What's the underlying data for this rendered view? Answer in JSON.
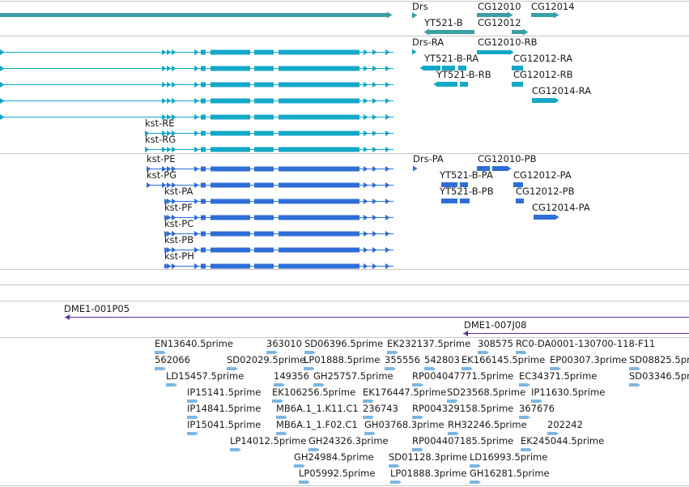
{
  "colors": {
    "gene": "#3aa0a4",
    "transcript_cyan": "#14a8c8",
    "transcript_blue": "#2f6ed6",
    "clone": "#5c2d91",
    "est": "#7eb6e0",
    "separator": "#c8c8c8",
    "text": "#1a1a1a"
  },
  "tracks": {
    "genes": {
      "labels": [
        "Drs",
        "CG12010",
        "CG12014",
        "YT521-B",
        "CG12012"
      ]
    },
    "transcripts_a": {
      "labels": [
        "Drs-RA",
        "CG12010-RB",
        "YT521-B-RA",
        "CG12012-RA",
        "YT521-B-RB",
        "CG12012-RB",
        "CG12014-RA",
        "kst-RE",
        "kst-RG"
      ]
    },
    "transcripts_b": {
      "labels": [
        "kst-PE",
        "Drs-PA",
        "CG12010-PB",
        "kst-PG",
        "YT521-B-PA",
        "CG12012-PA",
        "kst-PA",
        "YT521-B-PB",
        "CG12012-PB",
        "kst-PF",
        "CG12014-PA",
        "kst-PC",
        "kst-PB",
        "kst-PH"
      ]
    },
    "clones": {
      "labels": [
        "DME1-001P05",
        "DME1-007J08"
      ]
    },
    "ests": {
      "labels": [
        "EN13640.5prime",
        "363010",
        "SD06396.5prime",
        "EK232137.5prime",
        "308575",
        "RC0-DA0001-130700-118-F11",
        "562066",
        "SD02029.5prime",
        "LP01888.5prime",
        "355556",
        "542803",
        "EK166145.5prime",
        "EP00307.3prime",
        "SD08825.5prime",
        "LD15457.5prime",
        "149356",
        "GH25757.5prime",
        "RP004047771.5prime",
        "EC34371.5prime",
        "SD03346.5prime",
        "IP15141.5prime",
        "EK106256.5prime",
        "EK176447.5prime",
        "SD23568.5prime",
        "IP11630.5prime",
        "IP14841.5prime",
        "MB6A.1_1.K11.C1",
        "236743",
        "RP004329158.5prime",
        "367676",
        "IP15041.5prime",
        "MB6A.1_1.F02.C1",
        "GH03768.3prime",
        "RH32246.5prime",
        "202242",
        "LP14012.5prime",
        "GH24326.3prime",
        "RP004407185.5prime",
        "EK245044.5prime",
        "GH24984.5prime",
        "SD01128.3prime",
        "LD16993.5prime",
        "LP05992.5prime",
        "LP01888.3prime",
        "GH16281.5prime"
      ]
    }
  }
}
